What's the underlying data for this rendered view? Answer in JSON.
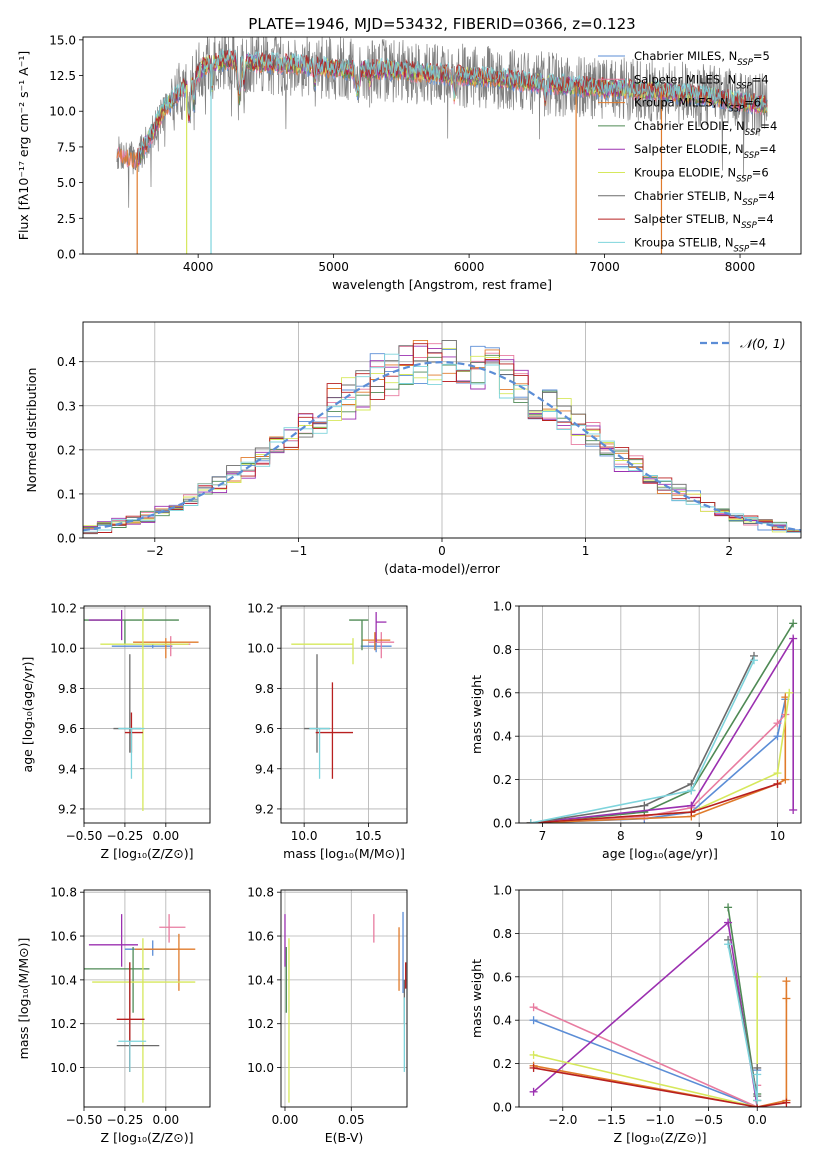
{
  "colors": {
    "c_miles": "#5b8dd6",
    "s_miles": "#e87ca0",
    "k_miles": "#e07b2b",
    "c_elodie": "#4f8a55",
    "s_elodie": "#9b30b0",
    "k_elodie": "#d6e85c",
    "c_stelib": "#6b6b6b",
    "s_stelib": "#b82020",
    "k_stelib": "#7ed4dc"
  },
  "chart_data": [
    {
      "id": "spectrum",
      "type": "line",
      "title": "PLATE=1946, MJD=53432, FIBERID=0366, z=0.123",
      "xlabel": "wavelength [Angstrom, rest frame]",
      "ylabel": "Flux [fλ10⁻¹⁷ erg cm⁻² s⁻¹ A⁻¹]",
      "xlim": [
        3150,
        8450
      ],
      "ylim": [
        0,
        15.2
      ],
      "xticks": [
        4000,
        5000,
        6000,
        7000,
        8000
      ],
      "yticks": [
        0.0,
        2.5,
        5.0,
        7.5,
        10.0,
        12.5,
        15.0
      ],
      "grid": false,
      "legend_position": "top-right",
      "legend": [
        {
          "key": "c_miles",
          "label": "Chabrier MILES, N",
          "sub": "SSP",
          "tail": "=5"
        },
        {
          "key": "s_miles",
          "label": "Salpeter MILES, N",
          "sub": "SSP",
          "tail": "=4"
        },
        {
          "key": "k_miles",
          "label": "Kroupa MILES, N",
          "sub": "SSP",
          "tail": "=6"
        },
        {
          "key": "c_elodie",
          "label": "Chabrier ELODIE, N",
          "sub": "SSP",
          "tail": "=4"
        },
        {
          "key": "s_elodie",
          "label": "Salpeter ELODIE, N",
          "sub": "SSP",
          "tail": "=4"
        },
        {
          "key": "k_elodie",
          "label": "Kroupa ELODIE, N",
          "sub": "SSP",
          "tail": "=6"
        },
        {
          "key": "c_stelib",
          "label": "Chabrier STELIB, N",
          "sub": "SSP",
          "tail": "=4"
        },
        {
          "key": "s_stelib",
          "label": "Salpeter STELIB, N",
          "sub": "SSP",
          "tail": "=4"
        },
        {
          "key": "k_stelib",
          "label": "Kroupa STELIB, N",
          "sub": "SSP",
          "tail": "=4"
        }
      ],
      "continuum": [
        [
          3400,
          7.1
        ],
        [
          3550,
          6.6
        ],
        [
          3650,
          8.3
        ],
        [
          3750,
          10.2
        ],
        [
          3850,
          11.2
        ],
        [
          3950,
          12.2
        ],
        [
          4050,
          13.2
        ],
        [
          4200,
          13.6
        ],
        [
          4400,
          13.4
        ],
        [
          4700,
          13.3
        ],
        [
          5000,
          13.0
        ],
        [
          5400,
          12.9
        ],
        [
          5800,
          12.6
        ],
        [
          6200,
          12.3
        ],
        [
          6600,
          11.9
        ],
        [
          7000,
          11.6
        ],
        [
          7400,
          11.4
        ],
        [
          7800,
          11.0
        ],
        [
          8200,
          10.4
        ]
      ],
      "drops": [
        {
          "key": "k_elodie",
          "x": 3915
        },
        {
          "key": "k_stelib",
          "x": 4095
        },
        {
          "key": "k_miles",
          "x": 6790
        },
        {
          "key": "k_miles",
          "x": 7420
        },
        {
          "key": "k_miles",
          "x": 3550
        }
      ]
    },
    {
      "id": "residuals",
      "type": "histogram",
      "xlabel": "(data-model)/error",
      "ylabel": "Normed distribution",
      "xlim": [
        -2.5,
        2.5
      ],
      "ylim": [
        0,
        0.49
      ],
      "xticks": [
        -2,
        -1,
        0,
        1,
        2
      ],
      "yticks": [
        0.0,
        0.1,
        0.2,
        0.3,
        0.4
      ],
      "grid": true,
      "legend_position": "top-right",
      "legend": [
        {
          "label": "𝒩(0, 1)",
          "color": "#5b8dd6",
          "dashed": true
        }
      ],
      "bin_width": 0.1
    },
    {
      "id": "age_vs_Z",
      "type": "errorbar",
      "xlabel": "Z [log₁₀(Z/Z⊙)]",
      "ylabel": "age  [log₁₀(age/yr)]",
      "xlim": [
        -0.5,
        0.27
      ],
      "ylim": [
        9.13,
        10.21
      ],
      "xticks": [
        -0.5,
        -0.25,
        0.0
      ],
      "xtick_labels": [
        "−0.50",
        "−0.25",
        "0.00"
      ],
      "yticks": [
        9.2,
        9.4,
        9.6,
        9.8,
        10.0,
        10.2
      ],
      "grid": true,
      "points": [
        {
          "key": "c_miles",
          "x": -0.08,
          "y": 10.01,
          "xerr": [
            0.25,
            0.12
          ],
          "yerr": [
            0.01,
            0.01
          ]
        },
        {
          "key": "s_miles",
          "x": 0.03,
          "y": 10.02,
          "xerr": [
            0.05,
            0.12
          ],
          "yerr": [
            0.06,
            0.04
          ]
        },
        {
          "key": "k_miles",
          "x": 0.0,
          "y": 10.03,
          "xerr": [
            0.2,
            0.2
          ],
          "yerr": [
            0.08,
            0.02
          ]
        },
        {
          "key": "c_elodie",
          "x": -0.25,
          "y": 10.14,
          "xerr": [
            0.25,
            0.33
          ],
          "yerr": [
            0.12,
            0.0
          ]
        },
        {
          "key": "s_elodie",
          "x": -0.27,
          "y": 10.14,
          "xerr": [
            0.2,
            0.0
          ],
          "yerr": [
            0.1,
            0.05
          ]
        },
        {
          "key": "k_elodie",
          "x": -0.14,
          "y": 10.02,
          "xerr": [
            0.26,
            0.28
          ],
          "yerr": [
            0.83,
            0.18
          ]
        },
        {
          "key": "c_stelib",
          "x": -0.22,
          "y": 9.6,
          "xerr": [
            0.1,
            0.07
          ],
          "yerr": [
            0.12,
            0.37
          ]
        },
        {
          "key": "s_stelib",
          "x": -0.21,
          "y": 9.58,
          "xerr": [
            0.04,
            0.07
          ],
          "yerr": [
            0.1,
            0.1
          ]
        },
        {
          "key": "k_stelib",
          "x": -0.21,
          "y": 9.6,
          "xerr": [
            0.08,
            0.08
          ],
          "yerr": [
            0.25,
            0.0
          ]
        }
      ]
    },
    {
      "id": "age_vs_mass",
      "type": "errorbar",
      "xlabel": "mass [log₁₀(M/M⊙)]",
      "ylabel": "",
      "xlim": [
        9.82,
        10.8
      ],
      "ylim": [
        9.13,
        10.21
      ],
      "xticks": [
        10.0,
        10.5
      ],
      "xtick_labels": [
        "10.0",
        "10.5"
      ],
      "yticks": [
        9.2,
        9.4,
        9.6,
        9.8,
        10.0,
        10.2
      ],
      "grid": true,
      "points": [
        {
          "key": "c_miles",
          "x": 10.56,
          "y": 10.01,
          "xerr": [
            0.12,
            0.12
          ],
          "yerr": [
            0.03,
            0.04
          ]
        },
        {
          "key": "s_miles",
          "x": 10.6,
          "y": 10.03,
          "xerr": [
            0.1,
            0.1
          ],
          "yerr": [
            0.08,
            0.05
          ]
        },
        {
          "key": "k_miles",
          "x": 10.55,
          "y": 10.04,
          "xerr": [
            0.1,
            0.12
          ],
          "yerr": [
            0.05,
            0.04
          ]
        },
        {
          "key": "c_elodie",
          "x": 10.45,
          "y": 10.14,
          "xerr": [
            0.1,
            0.05
          ],
          "yerr": [
            0.15,
            0.0
          ]
        },
        {
          "key": "s_elodie",
          "x": 10.56,
          "y": 10.13,
          "xerr": [
            0.0,
            0.08
          ],
          "yerr": [
            0.1,
            0.05
          ]
        },
        {
          "key": "k_elodie",
          "x": 10.38,
          "y": 10.02,
          "xerr": [
            0.48,
            0.0
          ],
          "yerr": [
            0.1,
            0.03
          ]
        },
        {
          "key": "c_stelib",
          "x": 10.1,
          "y": 9.6,
          "xerr": [
            0.1,
            0.1
          ],
          "yerr": [
            0.12,
            0.37
          ]
        },
        {
          "key": "s_stelib",
          "x": 10.22,
          "y": 9.58,
          "xerr": [
            0.13,
            0.16
          ],
          "yerr": [
            0.23,
            0.25
          ]
        },
        {
          "key": "k_stelib",
          "x": 10.12,
          "y": 9.6,
          "xerr": [
            0.08,
            0.08
          ],
          "yerr": [
            0.25,
            0.0
          ]
        }
      ]
    },
    {
      "id": "weight_vs_age",
      "type": "line",
      "xlabel": "age  [log₁₀(age/yr)]",
      "ylabel": "mass weight",
      "xlim": [
        6.7,
        10.3
      ],
      "ylim": [
        0,
        1.0
      ],
      "xticks": [
        7,
        8,
        9,
        10
      ],
      "yticks": [
        0.0,
        0.2,
        0.4,
        0.6,
        0.8,
        1.0
      ],
      "grid": true,
      "series": [
        {
          "key": "c_miles",
          "x": [
            6.85,
            8.3,
            8.9,
            10.0,
            10.1
          ],
          "y": [
            0.0,
            0.02,
            0.05,
            0.4,
            0.57
          ]
        },
        {
          "key": "s_miles",
          "x": [
            6.85,
            8.3,
            8.9,
            10.0,
            10.1
          ],
          "y": [
            0.0,
            0.03,
            0.07,
            0.46,
            0.5
          ]
        },
        {
          "key": "k_miles",
          "x": [
            6.85,
            8.9,
            10.0,
            10.1,
            10.1
          ],
          "y": [
            0.0,
            0.03,
            0.18,
            0.2,
            0.58
          ]
        },
        {
          "key": "c_elodie",
          "x": [
            6.85,
            8.3,
            8.9,
            10.2
          ],
          "y": [
            0.0,
            0.05,
            0.15,
            0.92
          ]
        },
        {
          "key": "s_elodie",
          "x": [
            6.85,
            8.9,
            10.2,
            10.2
          ],
          "y": [
            0.0,
            0.08,
            0.85,
            0.06
          ]
        },
        {
          "key": "k_elodie",
          "x": [
            6.85,
            8.9,
            10.0,
            10.15
          ],
          "y": [
            0.0,
            0.05,
            0.23,
            0.6
          ]
        },
        {
          "key": "c_stelib",
          "x": [
            6.85,
            8.3,
            8.9,
            9.7
          ],
          "y": [
            0.0,
            0.08,
            0.18,
            0.77
          ]
        },
        {
          "key": "s_stelib",
          "x": [
            6.85,
            8.9,
            10.0
          ],
          "y": [
            0.0,
            0.05,
            0.18
          ]
        },
        {
          "key": "k_stelib",
          "x": [
            6.85,
            8.9,
            9.7
          ],
          "y": [
            0.0,
            0.15,
            0.75
          ]
        }
      ]
    },
    {
      "id": "mass_vs_Z",
      "type": "errorbar",
      "xlabel": "Z [log₁₀(Z/Z⊙)]",
      "ylabel": "mass [log₁₀(M/M⊙)]",
      "xlim": [
        -0.5,
        0.27
      ],
      "ylim": [
        9.82,
        10.81
      ],
      "xticks": [
        -0.5,
        -0.25,
        0.0
      ],
      "xtick_labels": [
        "−0.50",
        "−0.25",
        "0.00"
      ],
      "yticks": [
        10.0,
        10.2,
        10.4,
        10.6,
        10.8
      ],
      "grid": true,
      "points": [
        {
          "key": "c_miles",
          "x": -0.08,
          "y": 10.54,
          "xerr": [
            0.17,
            0.14
          ],
          "yerr": [
            0.03,
            0.04
          ]
        },
        {
          "key": "s_miles",
          "x": 0.02,
          "y": 10.64,
          "xerr": [
            0.06,
            0.1
          ],
          "yerr": [
            0.07,
            0.06
          ]
        },
        {
          "key": "k_miles",
          "x": 0.08,
          "y": 10.54,
          "xerr": [
            0.27,
            0.1
          ],
          "yerr": [
            0.19,
            0.07
          ]
        },
        {
          "key": "c_elodie",
          "x": -0.2,
          "y": 10.45,
          "xerr": [
            0.3,
            0.1
          ],
          "yerr": [
            0.2,
            0.1
          ]
        },
        {
          "key": "s_elodie",
          "x": -0.27,
          "y": 10.56,
          "xerr": [
            0.2,
            0.1
          ],
          "yerr": [
            0.1,
            0.14
          ]
        },
        {
          "key": "k_elodie",
          "x": -0.14,
          "y": 10.39,
          "xerr": [
            0.31,
            0.32
          ],
          "yerr": [
            0.55,
            0.2
          ]
        },
        {
          "key": "c_stelib",
          "x": -0.22,
          "y": 10.1,
          "xerr": [
            0.08,
            0.18
          ],
          "yerr": [
            0.12,
            0.38
          ]
        },
        {
          "key": "s_stelib",
          "x": -0.22,
          "y": 10.22,
          "xerr": [
            0.08,
            0.09
          ],
          "yerr": [
            0.24,
            0.26
          ]
        },
        {
          "key": "k_stelib",
          "x": -0.22,
          "y": 10.12,
          "xerr": [
            0.07,
            0.1
          ],
          "yerr": [
            0.14,
            0.0
          ]
        }
      ]
    },
    {
      "id": "mass_vs_ebv",
      "type": "errorbar",
      "xlabel": "E(B-V)",
      "ylabel": "",
      "xlim": [
        -0.003,
        0.092
      ],
      "ylim": [
        9.82,
        10.81
      ],
      "xticks": [
        0.0,
        0.05
      ],
      "xtick_labels": [
        "0.00",
        "0.05"
      ],
      "yticks": [
        10.0,
        10.2,
        10.4,
        10.6,
        10.8
      ],
      "grid": true,
      "points": [
        {
          "key": "c_miles",
          "x": 0.089,
          "y": 10.54,
          "yerr": [
            0.2,
            0.17
          ]
        },
        {
          "key": "s_miles",
          "x": 0.067,
          "y": 10.64,
          "yerr": [
            0.07,
            0.06
          ]
        },
        {
          "key": "k_miles",
          "x": 0.086,
          "y": 10.5,
          "yerr": [
            0.15,
            0.14
          ]
        },
        {
          "key": "c_elodie",
          "x": 0.001,
          "y": 10.45,
          "yerr": [
            0.2,
            0.1
          ]
        },
        {
          "key": "s_elodie",
          "x": 0.0,
          "y": 10.56,
          "yerr": [
            0.1,
            0.14
          ]
        },
        {
          "key": "k_elodie",
          "x": 0.003,
          "y": 10.39,
          "yerr": [
            0.55,
            0.2
          ]
        },
        {
          "key": "c_stelib",
          "x": 0.09,
          "y": 10.3,
          "yerr": [
            0.1,
            0.1
          ]
        },
        {
          "key": "s_stelib",
          "x": 0.091,
          "y": 10.42,
          "yerr": [
            0.06,
            0.06
          ]
        },
        {
          "key": "k_stelib",
          "x": 0.09,
          "y": 10.12,
          "yerr": [
            0.14,
            0.2
          ]
        }
      ]
    },
    {
      "id": "weight_vs_Z",
      "type": "line",
      "xlabel": "Z [log₁₀(Z/Z⊙)]",
      "ylabel": "mass weight",
      "xlim": [
        -2.45,
        0.45
      ],
      "ylim": [
        0,
        1.0
      ],
      "xticks": [
        -2.0,
        -1.5,
        -1.0,
        -0.5,
        0.0
      ],
      "xtick_labels": [
        "−2.0",
        "−1.5",
        "−1.0",
        "−0.5",
        "0.0"
      ],
      "yticks": [
        0.0,
        0.2,
        0.4,
        0.6,
        0.8,
        1.0
      ],
      "grid": true,
      "series": [
        {
          "key": "c_miles",
          "x": [
            -2.3,
            0.0,
            0.0
          ],
          "y": [
            0.4,
            0.0,
            0.17
          ]
        },
        {
          "key": "s_miles",
          "x": [
            -2.3,
            0.0,
            0.0
          ],
          "y": [
            0.46,
            0.0,
            0.1
          ]
        },
        {
          "key": "k_miles",
          "x": [
            -2.3,
            0.0,
            0.3,
            0.3,
            0.3
          ],
          "y": [
            0.19,
            0.0,
            0.03,
            0.58,
            0.5
          ]
        },
        {
          "key": "c_elodie",
          "x": [
            -0.3,
            0.0,
            0.0
          ],
          "y": [
            0.92,
            0.03,
            0.06
          ]
        },
        {
          "key": "s_elodie",
          "x": [
            -2.3,
            -0.3,
            0.0
          ],
          "y": [
            0.07,
            0.85,
            0.0
          ]
        },
        {
          "key": "k_elodie",
          "x": [
            -2.3,
            0.0,
            0.0
          ],
          "y": [
            0.24,
            0.0,
            0.6
          ]
        },
        {
          "key": "c_stelib",
          "x": [
            -0.3,
            0.0,
            0.0
          ],
          "y": [
            0.77,
            0.05,
            0.18
          ]
        },
        {
          "key": "s_stelib",
          "x": [
            -2.3,
            0.0,
            0.3
          ],
          "y": [
            0.18,
            0.0,
            0.02
          ]
        },
        {
          "key": "k_stelib",
          "x": [
            -0.3,
            0.0,
            0.0
          ],
          "y": [
            0.75,
            0.03,
            0.15
          ]
        }
      ]
    }
  ]
}
